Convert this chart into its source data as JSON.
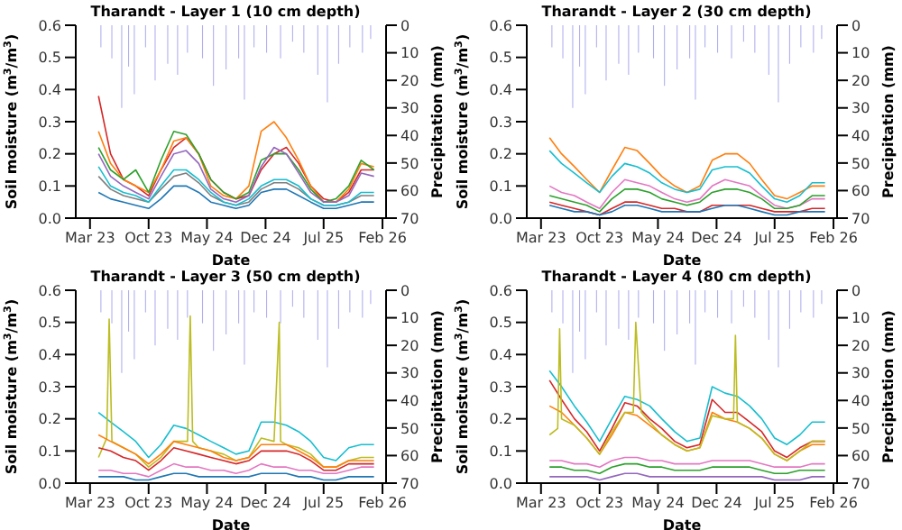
{
  "chart_data": [
    {
      "type": "line",
      "title": "Tharandt - Layer 1 (10 cm depth)",
      "xlabel": "Date",
      "ylabel": "Soil moisture (m$^{3}$/m$^{3}$)",
      "y2label": "Precipitation (mm)",
      "x": [
        "2023-04-01",
        "2023-05-15",
        "2023-07-01",
        "2023-08-15",
        "2023-10-01",
        "2023-11-15",
        "2024-01-01",
        "2024-02-15",
        "2024-04-01",
        "2024-05-15",
        "2024-07-01",
        "2024-08-15",
        "2024-10-01",
        "2024-11-15",
        "2025-01-01",
        "2025-02-15",
        "2025-04-01",
        "2025-05-15",
        "2025-07-01",
        "2025-08-15",
        "2025-10-01",
        "2025-11-15",
        "2026-01-01"
      ],
      "xlim": [
        "2023-01-08",
        "2026-02-14"
      ],
      "xticks": [
        {
          "value": "2023-03-01",
          "label": "Mar 23"
        },
        {
          "value": "2023-10-01",
          "label": "Oct 23"
        },
        {
          "value": "2024-05-01",
          "label": "May 24"
        },
        {
          "value": "2024-12-01",
          "label": "Dec 24"
        },
        {
          "value": "2025-07-01",
          "label": "Jul 25"
        },
        {
          "value": "2026-02-01",
          "label": "Feb 26"
        }
      ],
      "ylim": [
        0,
        0.6
      ],
      "yticks": [
        {
          "value": 0,
          "label": "0.0"
        },
        {
          "value": 0.1,
          "label": "0.1"
        },
        {
          "value": 0.2,
          "label": "0.2"
        },
        {
          "value": 0.3,
          "label": "0.3"
        },
        {
          "value": 0.4,
          "label": "0.4"
        },
        {
          "value": 0.5,
          "label": "0.5"
        },
        {
          "value": 0.6,
          "label": "0.6"
        }
      ],
      "y2lim": [
        70,
        0
      ],
      "y2ticks": [
        0,
        10,
        20,
        30,
        40,
        50,
        60,
        70
      ],
      "series": [
        {
          "type": "bar",
          "axis": "y2",
          "color": "#b0b0f0",
          "x": [
            "2023-04-10",
            "2023-05-20",
            "2023-06-25",
            "2023-07-20",
            "2023-08-10",
            "2023-09-20",
            "2023-10-25",
            "2023-12-10",
            "2024-01-15",
            "2024-02-20",
            "2024-04-15",
            "2024-05-25",
            "2024-07-10",
            "2024-08-25",
            "2024-09-15",
            "2024-10-20",
            "2024-12-05",
            "2025-01-25",
            "2025-03-10",
            "2025-04-20",
            "2025-06-10",
            "2025-07-15",
            "2025-08-25",
            "2025-10-05",
            "2025-11-20",
            "2025-12-20"
          ],
          "values": [
            8,
            12,
            30,
            15,
            25,
            8,
            20,
            14,
            18,
            10,
            12,
            22,
            16,
            12,
            27,
            8,
            10,
            12,
            6,
            10,
            18,
            28,
            14,
            8,
            10,
            5
          ]
        },
        {
          "color": "#d62728",
          "values": [
            0.38,
            0.2,
            0.12,
            0.1,
            0.07,
            0.15,
            0.22,
            0.25,
            0.2,
            0.12,
            0.08,
            0.06,
            0.07,
            0.15,
            0.2,
            0.22,
            0.17,
            0.1,
            0.06,
            0.05,
            0.08,
            0.15,
            0.15
          ]
        },
        {
          "color": "#ff7f0e",
          "values": [
            0.27,
            0.17,
            0.12,
            0.1,
            0.08,
            0.15,
            0.24,
            0.25,
            0.2,
            0.1,
            0.07,
            0.06,
            0.1,
            0.27,
            0.3,
            0.25,
            0.18,
            0.1,
            0.05,
            0.05,
            0.09,
            0.17,
            0.16
          ]
        },
        {
          "color": "#2ca02c",
          "values": [
            0.22,
            0.15,
            0.12,
            0.15,
            0.08,
            0.18,
            0.27,
            0.26,
            0.2,
            0.12,
            0.08,
            0.06,
            0.08,
            0.18,
            0.2,
            0.2,
            0.15,
            0.09,
            0.05,
            0.06,
            0.1,
            0.18,
            0.15
          ]
        },
        {
          "color": "#9467bd",
          "values": [
            0.2,
            0.13,
            0.1,
            0.08,
            0.06,
            0.13,
            0.2,
            0.21,
            0.17,
            0.09,
            0.06,
            0.05,
            0.07,
            0.16,
            0.22,
            0.2,
            0.14,
            0.08,
            0.05,
            0.05,
            0.07,
            0.14,
            0.13
          ]
        },
        {
          "color": "#7f7f7f",
          "values": [
            0.13,
            0.09,
            0.07,
            0.06,
            0.05,
            0.09,
            0.13,
            0.14,
            0.11,
            0.07,
            0.05,
            0.04,
            0.05,
            0.09,
            0.11,
            0.11,
            0.09,
            0.06,
            0.04,
            0.04,
            0.05,
            0.07,
            0.07
          ]
        },
        {
          "color": "#17becf",
          "values": [
            0.16,
            0.1,
            0.08,
            0.07,
            0.05,
            0.1,
            0.15,
            0.15,
            0.12,
            0.08,
            0.05,
            0.04,
            0.06,
            0.1,
            0.12,
            0.12,
            0.1,
            0.06,
            0.04,
            0.04,
            0.05,
            0.08,
            0.08
          ]
        },
        {
          "color": "#1f77b4",
          "values": [
            0.08,
            0.06,
            0.05,
            0.04,
            0.03,
            0.06,
            0.1,
            0.1,
            0.08,
            0.05,
            0.04,
            0.03,
            0.04,
            0.08,
            0.09,
            0.09,
            0.07,
            0.05,
            0.03,
            0.03,
            0.04,
            0.05,
            0.05
          ]
        }
      ]
    },
    {
      "type": "line",
      "title": "Tharandt - Layer 2 (30 cm depth)",
      "xlabel": "Date",
      "ylabel": "Soil moisture (m$^{3}$/m$^{3}$)",
      "y2label": "Precipitation (mm)",
      "x": [
        "2023-04-01",
        "2023-05-15",
        "2023-07-01",
        "2023-08-15",
        "2023-10-01",
        "2023-11-15",
        "2024-01-01",
        "2024-02-15",
        "2024-04-01",
        "2024-05-15",
        "2024-07-01",
        "2024-08-15",
        "2024-10-01",
        "2024-11-15",
        "2025-01-01",
        "2025-02-15",
        "2025-04-01",
        "2025-05-15",
        "2025-07-01",
        "2025-08-15",
        "2025-10-01",
        "2025-11-15",
        "2026-01-01"
      ],
      "xlim": [
        "2023-01-08",
        "2026-02-14"
      ],
      "xticks": [
        {
          "value": "2023-03-01",
          "label": "Mar 23"
        },
        {
          "value": "2023-10-01",
          "label": "Oct 23"
        },
        {
          "value": "2024-05-01",
          "label": "May 24"
        },
        {
          "value": "2024-12-01",
          "label": "Dec 24"
        },
        {
          "value": "2025-07-01",
          "label": "Jul 25"
        },
        {
          "value": "2026-02-01",
          "label": "Feb 26"
        }
      ],
      "ylim": [
        0,
        0.6
      ],
      "yticks": [
        {
          "value": 0,
          "label": "0.0"
        },
        {
          "value": 0.1,
          "label": "0.1"
        },
        {
          "value": 0.2,
          "label": "0.2"
        },
        {
          "value": 0.3,
          "label": "0.3"
        },
        {
          "value": 0.4,
          "label": "0.4"
        },
        {
          "value": 0.5,
          "label": "0.5"
        },
        {
          "value": 0.6,
          "label": "0.6"
        }
      ],
      "y2lim": [
        70,
        0
      ],
      "y2ticks": [
        0,
        10,
        20,
        30,
        40,
        50,
        60,
        70
      ],
      "series": [
        {
          "type": "bar",
          "axis": "y2",
          "color": "#b0b0f0",
          "x": [
            "2023-04-10",
            "2023-05-20",
            "2023-06-25",
            "2023-07-20",
            "2023-08-10",
            "2023-09-20",
            "2023-10-25",
            "2023-12-10",
            "2024-01-15",
            "2024-02-20",
            "2024-04-15",
            "2024-05-25",
            "2024-07-10",
            "2024-08-25",
            "2024-09-15",
            "2024-10-20",
            "2024-12-05",
            "2025-01-25",
            "2025-03-10",
            "2025-04-20",
            "2025-06-10",
            "2025-07-15",
            "2025-08-25",
            "2025-10-05",
            "2025-11-20",
            "2025-12-20"
          ],
          "values": [
            8,
            12,
            30,
            15,
            25,
            8,
            20,
            14,
            18,
            10,
            12,
            22,
            16,
            12,
            27,
            8,
            10,
            12,
            6,
            10,
            18,
            28,
            14,
            8,
            10,
            5
          ]
        },
        {
          "color": "#ff7f0e",
          "values": [
            0.25,
            0.2,
            0.16,
            0.12,
            0.08,
            0.15,
            0.22,
            0.21,
            0.17,
            0.13,
            0.1,
            0.08,
            0.1,
            0.18,
            0.2,
            0.2,
            0.17,
            0.12,
            0.07,
            0.06,
            0.08,
            0.1,
            0.1
          ]
        },
        {
          "color": "#17becf",
          "values": [
            0.21,
            0.17,
            0.14,
            0.11,
            0.08,
            0.13,
            0.17,
            0.16,
            0.14,
            0.11,
            0.09,
            0.08,
            0.09,
            0.15,
            0.16,
            0.16,
            0.14,
            0.1,
            0.06,
            0.05,
            0.07,
            0.11,
            0.11
          ]
        },
        {
          "color": "#e377c2",
          "values": [
            0.1,
            0.08,
            0.07,
            0.05,
            0.03,
            0.08,
            0.12,
            0.11,
            0.1,
            0.08,
            0.06,
            0.05,
            0.06,
            0.1,
            0.12,
            0.11,
            0.1,
            0.07,
            0.04,
            0.03,
            0.04,
            0.06,
            0.06
          ]
        },
        {
          "color": "#2ca02c",
          "values": [
            0.07,
            0.06,
            0.05,
            0.04,
            0.02,
            0.06,
            0.09,
            0.09,
            0.08,
            0.06,
            0.05,
            0.04,
            0.05,
            0.08,
            0.09,
            0.09,
            0.08,
            0.06,
            0.03,
            0.03,
            0.04,
            0.07,
            0.07
          ]
        },
        {
          "color": "#d62728",
          "values": [
            0.05,
            0.04,
            0.03,
            0.02,
            0.01,
            0.03,
            0.05,
            0.05,
            0.04,
            0.03,
            0.03,
            0.02,
            0.02,
            0.04,
            0.04,
            0.04,
            0.04,
            0.03,
            0.02,
            0.02,
            0.02,
            0.03,
            0.03
          ]
        },
        {
          "color": "#1f77b4",
          "values": [
            0.04,
            0.03,
            0.02,
            0.02,
            0.01,
            0.02,
            0.04,
            0.04,
            0.03,
            0.02,
            0.02,
            0.02,
            0.02,
            0.03,
            0.04,
            0.04,
            0.03,
            0.02,
            0.01,
            0.01,
            0.02,
            0.02,
            0.02
          ]
        }
      ]
    },
    {
      "type": "line",
      "title": "Tharandt - Layer 3 (50 cm depth)",
      "xlabel": "Date",
      "ylabel": "Soil moisture (m$^{3}$/m$^{3}$)",
      "y2label": "Precipitation (mm)",
      "x": [
        "2023-04-01",
        "2023-05-15",
        "2023-07-01",
        "2023-08-15",
        "2023-10-01",
        "2023-11-15",
        "2024-01-01",
        "2024-02-15",
        "2024-04-01",
        "2024-05-15",
        "2024-07-01",
        "2024-08-15",
        "2024-10-01",
        "2024-11-15",
        "2025-01-01",
        "2025-02-15",
        "2025-04-01",
        "2025-05-15",
        "2025-07-01",
        "2025-08-15",
        "2025-10-01",
        "2025-11-15",
        "2026-01-01"
      ],
      "xlim": [
        "2023-01-08",
        "2026-02-14"
      ],
      "xticks": [
        {
          "value": "2023-03-01",
          "label": "Mar 23"
        },
        {
          "value": "2023-10-01",
          "label": "Oct 23"
        },
        {
          "value": "2024-05-01",
          "label": "May 24"
        },
        {
          "value": "2024-12-01",
          "label": "Dec 24"
        },
        {
          "value": "2025-07-01",
          "label": "Jul 25"
        },
        {
          "value": "2026-02-01",
          "label": "Feb 26"
        }
      ],
      "ylim": [
        0,
        0.6
      ],
      "yticks": [
        {
          "value": 0,
          "label": "0.0"
        },
        {
          "value": 0.1,
          "label": "0.1"
        },
        {
          "value": 0.2,
          "label": "0.2"
        },
        {
          "value": 0.3,
          "label": "0.3"
        },
        {
          "value": 0.4,
          "label": "0.4"
        },
        {
          "value": 0.5,
          "label": "0.5"
        },
        {
          "value": 0.6,
          "label": "0.6"
        }
      ],
      "y2lim": [
        70,
        0
      ],
      "y2ticks": [
        0,
        10,
        20,
        30,
        40,
        50,
        60,
        70
      ],
      "series": [
        {
          "type": "bar",
          "axis": "y2",
          "color": "#b0b0f0",
          "x": [
            "2023-04-10",
            "2023-05-20",
            "2023-06-25",
            "2023-07-20",
            "2023-08-10",
            "2023-09-20",
            "2023-10-25",
            "2023-12-10",
            "2024-01-15",
            "2024-02-20",
            "2024-04-15",
            "2024-05-25",
            "2024-07-10",
            "2024-08-25",
            "2024-09-15",
            "2024-10-20",
            "2024-12-05",
            "2025-01-25",
            "2025-03-10",
            "2025-04-20",
            "2025-06-10",
            "2025-07-15",
            "2025-08-25",
            "2025-10-05",
            "2025-11-20",
            "2025-12-20"
          ],
          "values": [
            8,
            12,
            30,
            15,
            25,
            8,
            20,
            14,
            18,
            10,
            12,
            22,
            16,
            12,
            27,
            8,
            10,
            12,
            6,
            10,
            18,
            28,
            14,
            8,
            10,
            5
          ]
        },
        {
          "color": "#17becf",
          "values": [
            0.22,
            0.19,
            0.16,
            0.13,
            0.08,
            0.12,
            0.18,
            0.17,
            0.15,
            0.13,
            0.11,
            0.09,
            0.1,
            0.19,
            0.19,
            0.18,
            0.16,
            0.13,
            0.08,
            0.07,
            0.11,
            0.12,
            0.12
          ]
        },
        {
          "color": "#bcbd22",
          "x": [
            "2023-04-01",
            "2023-05-01",
            "2023-05-10",
            "2023-05-20",
            "2023-07-01",
            "2023-08-15",
            "2023-10-01",
            "2023-11-15",
            "2024-01-01",
            "2024-02-20",
            "2024-03-01",
            "2024-03-10",
            "2024-04-01",
            "2024-05-15",
            "2024-07-01",
            "2024-08-15",
            "2024-10-01",
            "2024-11-15",
            "2025-01-01",
            "2025-01-20",
            "2025-01-25",
            "2025-02-15",
            "2025-04-01",
            "2025-05-15",
            "2025-07-01",
            "2025-08-15",
            "2025-10-01",
            "2025-11-15",
            "2026-01-01"
          ],
          "values": [
            0.08,
            0.14,
            0.51,
            0.13,
            0.11,
            0.09,
            0.05,
            0.08,
            0.13,
            0.13,
            0.52,
            0.13,
            0.11,
            0.1,
            0.09,
            0.07,
            0.08,
            0.14,
            0.13,
            0.5,
            0.13,
            0.12,
            0.11,
            0.09,
            0.05,
            0.05,
            0.07,
            0.08,
            0.08
          ]
        },
        {
          "color": "#ff7f0e",
          "values": [
            0.15,
            0.13,
            0.11,
            0.09,
            0.06,
            0.09,
            0.13,
            0.12,
            0.11,
            0.1,
            0.08,
            0.07,
            0.08,
            0.12,
            0.12,
            0.12,
            0.1,
            0.08,
            0.05,
            0.05,
            0.07,
            0.07,
            0.07
          ]
        },
        {
          "color": "#d62728",
          "values": [
            0.11,
            0.1,
            0.08,
            0.07,
            0.04,
            0.07,
            0.11,
            0.1,
            0.09,
            0.08,
            0.07,
            0.06,
            0.07,
            0.1,
            0.1,
            0.1,
            0.09,
            0.07,
            0.04,
            0.04,
            0.06,
            0.06,
            0.06
          ]
        },
        {
          "color": "#e377c2",
          "values": [
            0.04,
            0.04,
            0.03,
            0.03,
            0.02,
            0.04,
            0.06,
            0.05,
            0.05,
            0.04,
            0.04,
            0.03,
            0.04,
            0.06,
            0.05,
            0.05,
            0.04,
            0.04,
            0.03,
            0.03,
            0.04,
            0.05,
            0.05
          ]
        },
        {
          "color": "#1f77b4",
          "values": [
            0.02,
            0.02,
            0.02,
            0.01,
            0.01,
            0.02,
            0.03,
            0.03,
            0.02,
            0.02,
            0.02,
            0.02,
            0.02,
            0.03,
            0.03,
            0.03,
            0.02,
            0.02,
            0.01,
            0.01,
            0.02,
            0.02,
            0.02
          ]
        }
      ]
    },
    {
      "type": "line",
      "title": "Tharandt - Layer 4 (80 cm depth)",
      "xlabel": "Date",
      "ylabel": "Soil moisture (m$^{3}$/m$^{3}$)",
      "y2label": "Precipitation (mm)",
      "x": [
        "2023-04-01",
        "2023-05-15",
        "2023-07-01",
        "2023-08-15",
        "2023-10-01",
        "2023-11-15",
        "2024-01-01",
        "2024-02-15",
        "2024-04-01",
        "2024-05-15",
        "2024-07-01",
        "2024-08-15",
        "2024-10-01",
        "2024-11-15",
        "2025-01-01",
        "2025-02-15",
        "2025-04-01",
        "2025-05-15",
        "2025-07-01",
        "2025-08-15",
        "2025-10-01",
        "2025-11-15",
        "2026-01-01"
      ],
      "xlim": [
        "2023-01-08",
        "2026-02-14"
      ],
      "xticks": [
        {
          "value": "2023-03-01",
          "label": "Mar 23"
        },
        {
          "value": "2023-10-01",
          "label": "Oct 23"
        },
        {
          "value": "2024-05-01",
          "label": "May 24"
        },
        {
          "value": "2024-12-01",
          "label": "Dec 24"
        },
        {
          "value": "2025-07-01",
          "label": "Jul 25"
        },
        {
          "value": "2026-02-01",
          "label": "Feb 26"
        }
      ],
      "ylim": [
        0,
        0.6
      ],
      "yticks": [
        {
          "value": 0,
          "label": "0.0"
        },
        {
          "value": 0.1,
          "label": "0.1"
        },
        {
          "value": 0.2,
          "label": "0.2"
        },
        {
          "value": 0.3,
          "label": "0.3"
        },
        {
          "value": 0.4,
          "label": "0.4"
        },
        {
          "value": 0.5,
          "label": "0.5"
        },
        {
          "value": 0.6,
          "label": "0.6"
        }
      ],
      "y2lim": [
        70,
        0
      ],
      "y2ticks": [
        0,
        10,
        20,
        30,
        40,
        50,
        60,
        70
      ],
      "series": [
        {
          "type": "bar",
          "axis": "y2",
          "color": "#b0b0f0",
          "x": [
            "2023-04-10",
            "2023-05-20",
            "2023-06-25",
            "2023-07-20",
            "2023-08-10",
            "2023-09-20",
            "2023-10-25",
            "2023-12-10",
            "2024-01-15",
            "2024-02-20",
            "2024-04-15",
            "2024-05-25",
            "2024-07-10",
            "2024-08-25",
            "2024-09-15",
            "2024-10-20",
            "2024-12-05",
            "2025-01-25",
            "2025-03-10",
            "2025-04-20",
            "2025-06-10",
            "2025-07-15",
            "2025-08-25",
            "2025-10-05",
            "2025-11-20",
            "2025-12-20"
          ],
          "values": [
            8,
            12,
            30,
            15,
            25,
            8,
            20,
            14,
            18,
            10,
            12,
            22,
            16,
            12,
            27,
            8,
            10,
            12,
            6,
            10,
            18,
            28,
            14,
            8,
            10,
            5
          ]
        },
        {
          "color": "#17becf",
          "values": [
            0.35,
            0.3,
            0.24,
            0.19,
            0.13,
            0.2,
            0.27,
            0.26,
            0.24,
            0.2,
            0.16,
            0.13,
            0.14,
            0.3,
            0.28,
            0.27,
            0.24,
            0.2,
            0.14,
            0.12,
            0.15,
            0.19,
            0.19
          ]
        },
        {
          "color": "#d62728",
          "values": [
            0.32,
            0.26,
            0.2,
            0.16,
            0.1,
            0.17,
            0.25,
            0.24,
            0.2,
            0.17,
            0.13,
            0.11,
            0.12,
            0.26,
            0.22,
            0.22,
            0.19,
            0.16,
            0.1,
            0.08,
            0.11,
            0.13,
            0.13
          ]
        },
        {
          "color": "#ff7f0e",
          "values": [
            0.24,
            0.22,
            0.18,
            0.14,
            0.09,
            0.15,
            0.22,
            0.21,
            0.18,
            0.15,
            0.12,
            0.1,
            0.11,
            0.22,
            0.2,
            0.19,
            0.17,
            0.14,
            0.09,
            0.07,
            0.1,
            0.12,
            0.12
          ]
        },
        {
          "color": "#bcbd22",
          "x": [
            "2023-04-01",
            "2023-05-01",
            "2023-05-08",
            "2023-05-15",
            "2023-07-01",
            "2023-08-15",
            "2023-10-01",
            "2023-11-15",
            "2024-01-01",
            "2024-02-01",
            "2024-02-10",
            "2024-03-01",
            "2024-04-01",
            "2024-05-15",
            "2024-07-01",
            "2024-08-15",
            "2024-10-01",
            "2024-11-15",
            "2025-01-01",
            "2025-02-01",
            "2025-02-08",
            "2025-02-15",
            "2025-04-01",
            "2025-05-15",
            "2025-07-01",
            "2025-08-15",
            "2025-10-01",
            "2025-11-15",
            "2026-01-01"
          ],
          "values": [
            0.15,
            0.17,
            0.48,
            0.2,
            0.18,
            0.14,
            0.09,
            0.16,
            0.22,
            0.22,
            0.5,
            0.22,
            0.19,
            0.15,
            0.12,
            0.1,
            0.11,
            0.21,
            0.2,
            0.2,
            0.46,
            0.19,
            0.17,
            0.14,
            0.09,
            0.07,
            0.1,
            0.13,
            0.13
          ]
        },
        {
          "color": "#e377c2",
          "values": [
            0.07,
            0.07,
            0.06,
            0.06,
            0.05,
            0.07,
            0.08,
            0.08,
            0.07,
            0.07,
            0.06,
            0.06,
            0.06,
            0.07,
            0.07,
            0.07,
            0.07,
            0.06,
            0.05,
            0.05,
            0.05,
            0.06,
            0.06
          ]
        },
        {
          "color": "#2ca02c",
          "values": [
            0.05,
            0.05,
            0.04,
            0.04,
            0.03,
            0.05,
            0.06,
            0.06,
            0.05,
            0.05,
            0.04,
            0.04,
            0.04,
            0.05,
            0.05,
            0.05,
            0.05,
            0.04,
            0.03,
            0.03,
            0.04,
            0.04,
            0.04
          ]
        },
        {
          "color": "#9467bd",
          "values": [
            0.02,
            0.02,
            0.02,
            0.02,
            0.01,
            0.02,
            0.03,
            0.03,
            0.02,
            0.02,
            0.02,
            0.02,
            0.02,
            0.02,
            0.02,
            0.02,
            0.02,
            0.02,
            0.01,
            0.01,
            0.01,
            0.02,
            0.02
          ]
        }
      ]
    }
  ]
}
